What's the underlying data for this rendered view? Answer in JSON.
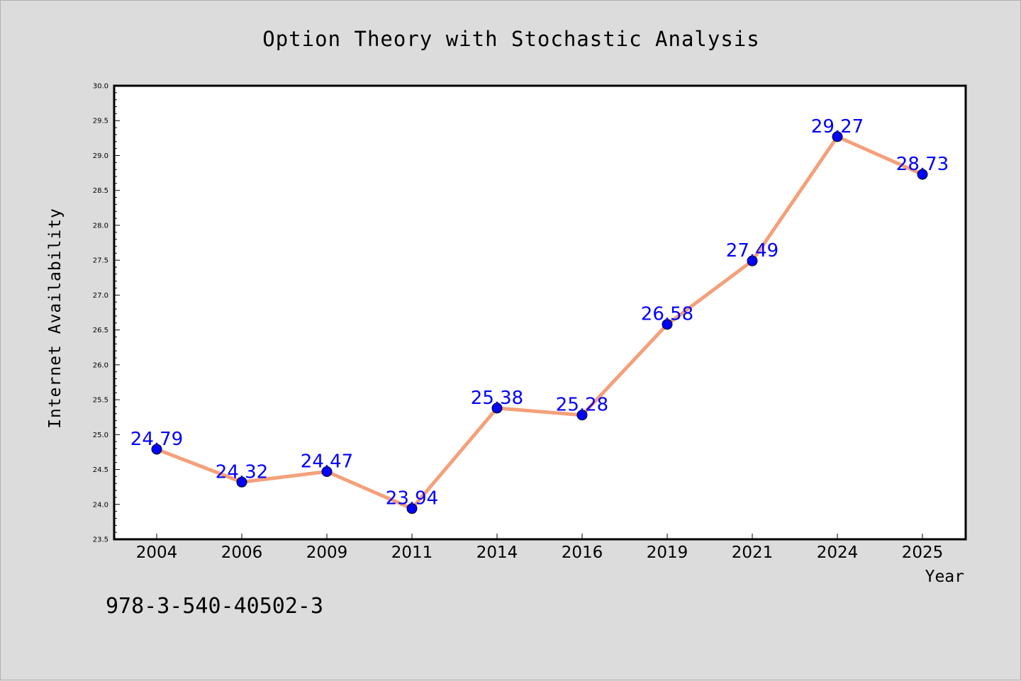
{
  "chart_data": {
    "type": "line",
    "title": "Option Theory with Stochastic Analysis",
    "xlabel": "Year",
    "ylabel": "Internet Availability",
    "categories": [
      "2004",
      "2006",
      "2009",
      "2011",
      "2014",
      "2016",
      "2019",
      "2021",
      "2024",
      "2025"
    ],
    "series": [
      {
        "values": [
          24.79,
          24.32,
          24.47,
          23.94,
          25.38,
          25.28,
          26.58,
          27.49,
          29.27,
          28.73
        ],
        "labels": [
          "24.79",
          "24.32",
          "24.47",
          "23.94",
          "25.38",
          "25.28",
          "26.58",
          "27.49",
          "29.27",
          "28.73"
        ]
      }
    ],
    "ylim": [
      23.5,
      30.0
    ],
    "yticks": [
      "23.5",
      "24.0",
      "24.5",
      "25.0",
      "25.5",
      "26.0",
      "26.5",
      "27.0",
      "27.5",
      "28.0",
      "28.5",
      "29.0",
      "29.5",
      "30.0"
    ],
    "grid": false,
    "colors": {
      "line": "#f4a07a",
      "marker": "#0000ff",
      "data_label": "#0000ff",
      "plot_bg": "#ffffff",
      "page_bg": "#dcdcdc"
    }
  },
  "annotation": {
    "isbn": "978-3-540-40502-3"
  }
}
